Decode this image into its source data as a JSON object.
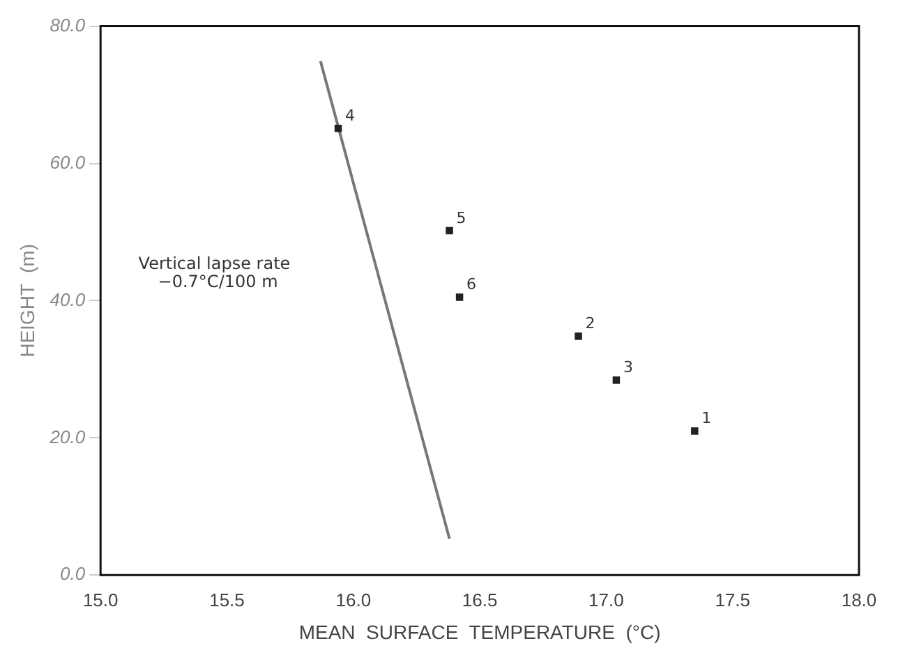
{
  "chart_data": {
    "type": "scatter",
    "xlabel": "MEAN  SURFACE  TEMPERATURE  (°C)",
    "ylabel": "HEIGHT  (m)",
    "xlim": [
      15.0,
      18.0
    ],
    "xticks": [
      {
        "value": 15,
        "label": "15.0"
      },
      15.5,
      {
        "value": 16,
        "label": "16.0"
      },
      16.5,
      {
        "value": 17,
        "label": "17.0"
      },
      17.5,
      {
        "value": 18,
        "label": "18.0"
      }
    ],
    "ylim": [
      0,
      80
    ],
    "yticks": [
      {
        "value": 0,
        "label": "0.0"
      },
      {
        "value": 20,
        "label": "20.0"
      },
      {
        "value": 40,
        "label": "40.0"
      },
      {
        "value": 60,
        "label": "60.0"
      },
      {
        "value": 80,
        "label": "80.0"
      }
    ],
    "grid": false,
    "legend": false,
    "marker": "square",
    "series": [
      {
        "color": "#222222",
        "x": [
          17.35,
          16.89,
          17.04,
          15.94,
          16.38,
          16.42
        ],
        "values": [
          21.0,
          34.8,
          28.4,
          65.1,
          50.2,
          40.5
        ]
      },
      {
        "type": "line",
        "color": "#777777",
        "line_style": "solid",
        "marker": "none",
        "x": [
          15.87,
          16.38
        ],
        "values": [
          74.9,
          5.3
        ]
      }
    ],
    "annotations": [
      {
        "text": "1",
        "x": 17.35,
        "y": 21.0
      },
      {
        "text": "2",
        "x": 16.89,
        "y": 34.8
      },
      {
        "text": "3",
        "x": 17.04,
        "y": 28.4
      },
      {
        "text": "4",
        "x": 15.94,
        "y": 65.1
      },
      {
        "text": "5",
        "x": 16.38,
        "y": 50.2
      },
      {
        "text": "6",
        "x": 16.42,
        "y": 40.5
      },
      "Vertical lapse rate\n−0.7°C/100 m"
    ]
  }
}
